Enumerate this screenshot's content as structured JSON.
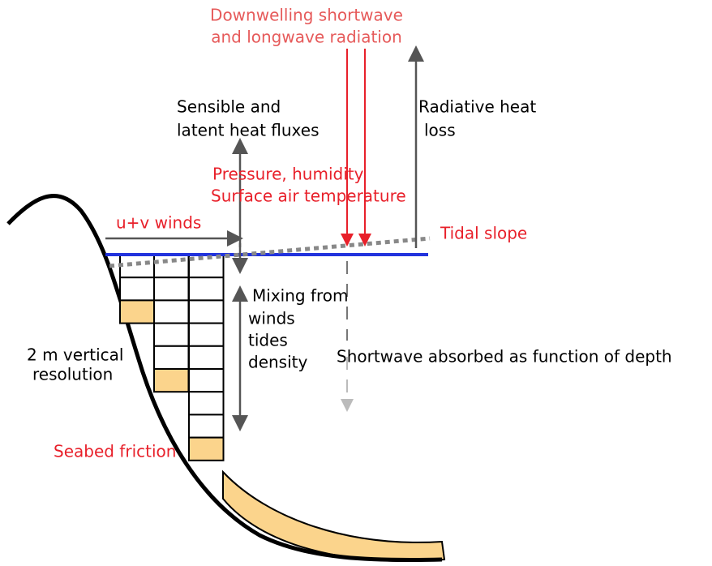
{
  "labels": {
    "downwelling": [
      "Downwelling shortwave",
      "and longwave radiation"
    ],
    "sensible": [
      "Sensible and",
      "latent heat fluxes"
    ],
    "radiative": [
      "Radiative heat",
      "loss"
    ],
    "pressure": [
      "Pressure, humidity",
      "Surface air temperature"
    ],
    "winds": [
      "u+v winds"
    ],
    "tidal": [
      "Tidal slope"
    ],
    "mixing": [
      "Mixing from",
      "winds",
      "tides",
      "density"
    ],
    "resolution": [
      "2 m vertical",
      "resolution"
    ],
    "shortwave": [
      "Shortwave absorbed as function of depth"
    ],
    "seabed": [
      "Seabed friction"
    ]
  }
}
